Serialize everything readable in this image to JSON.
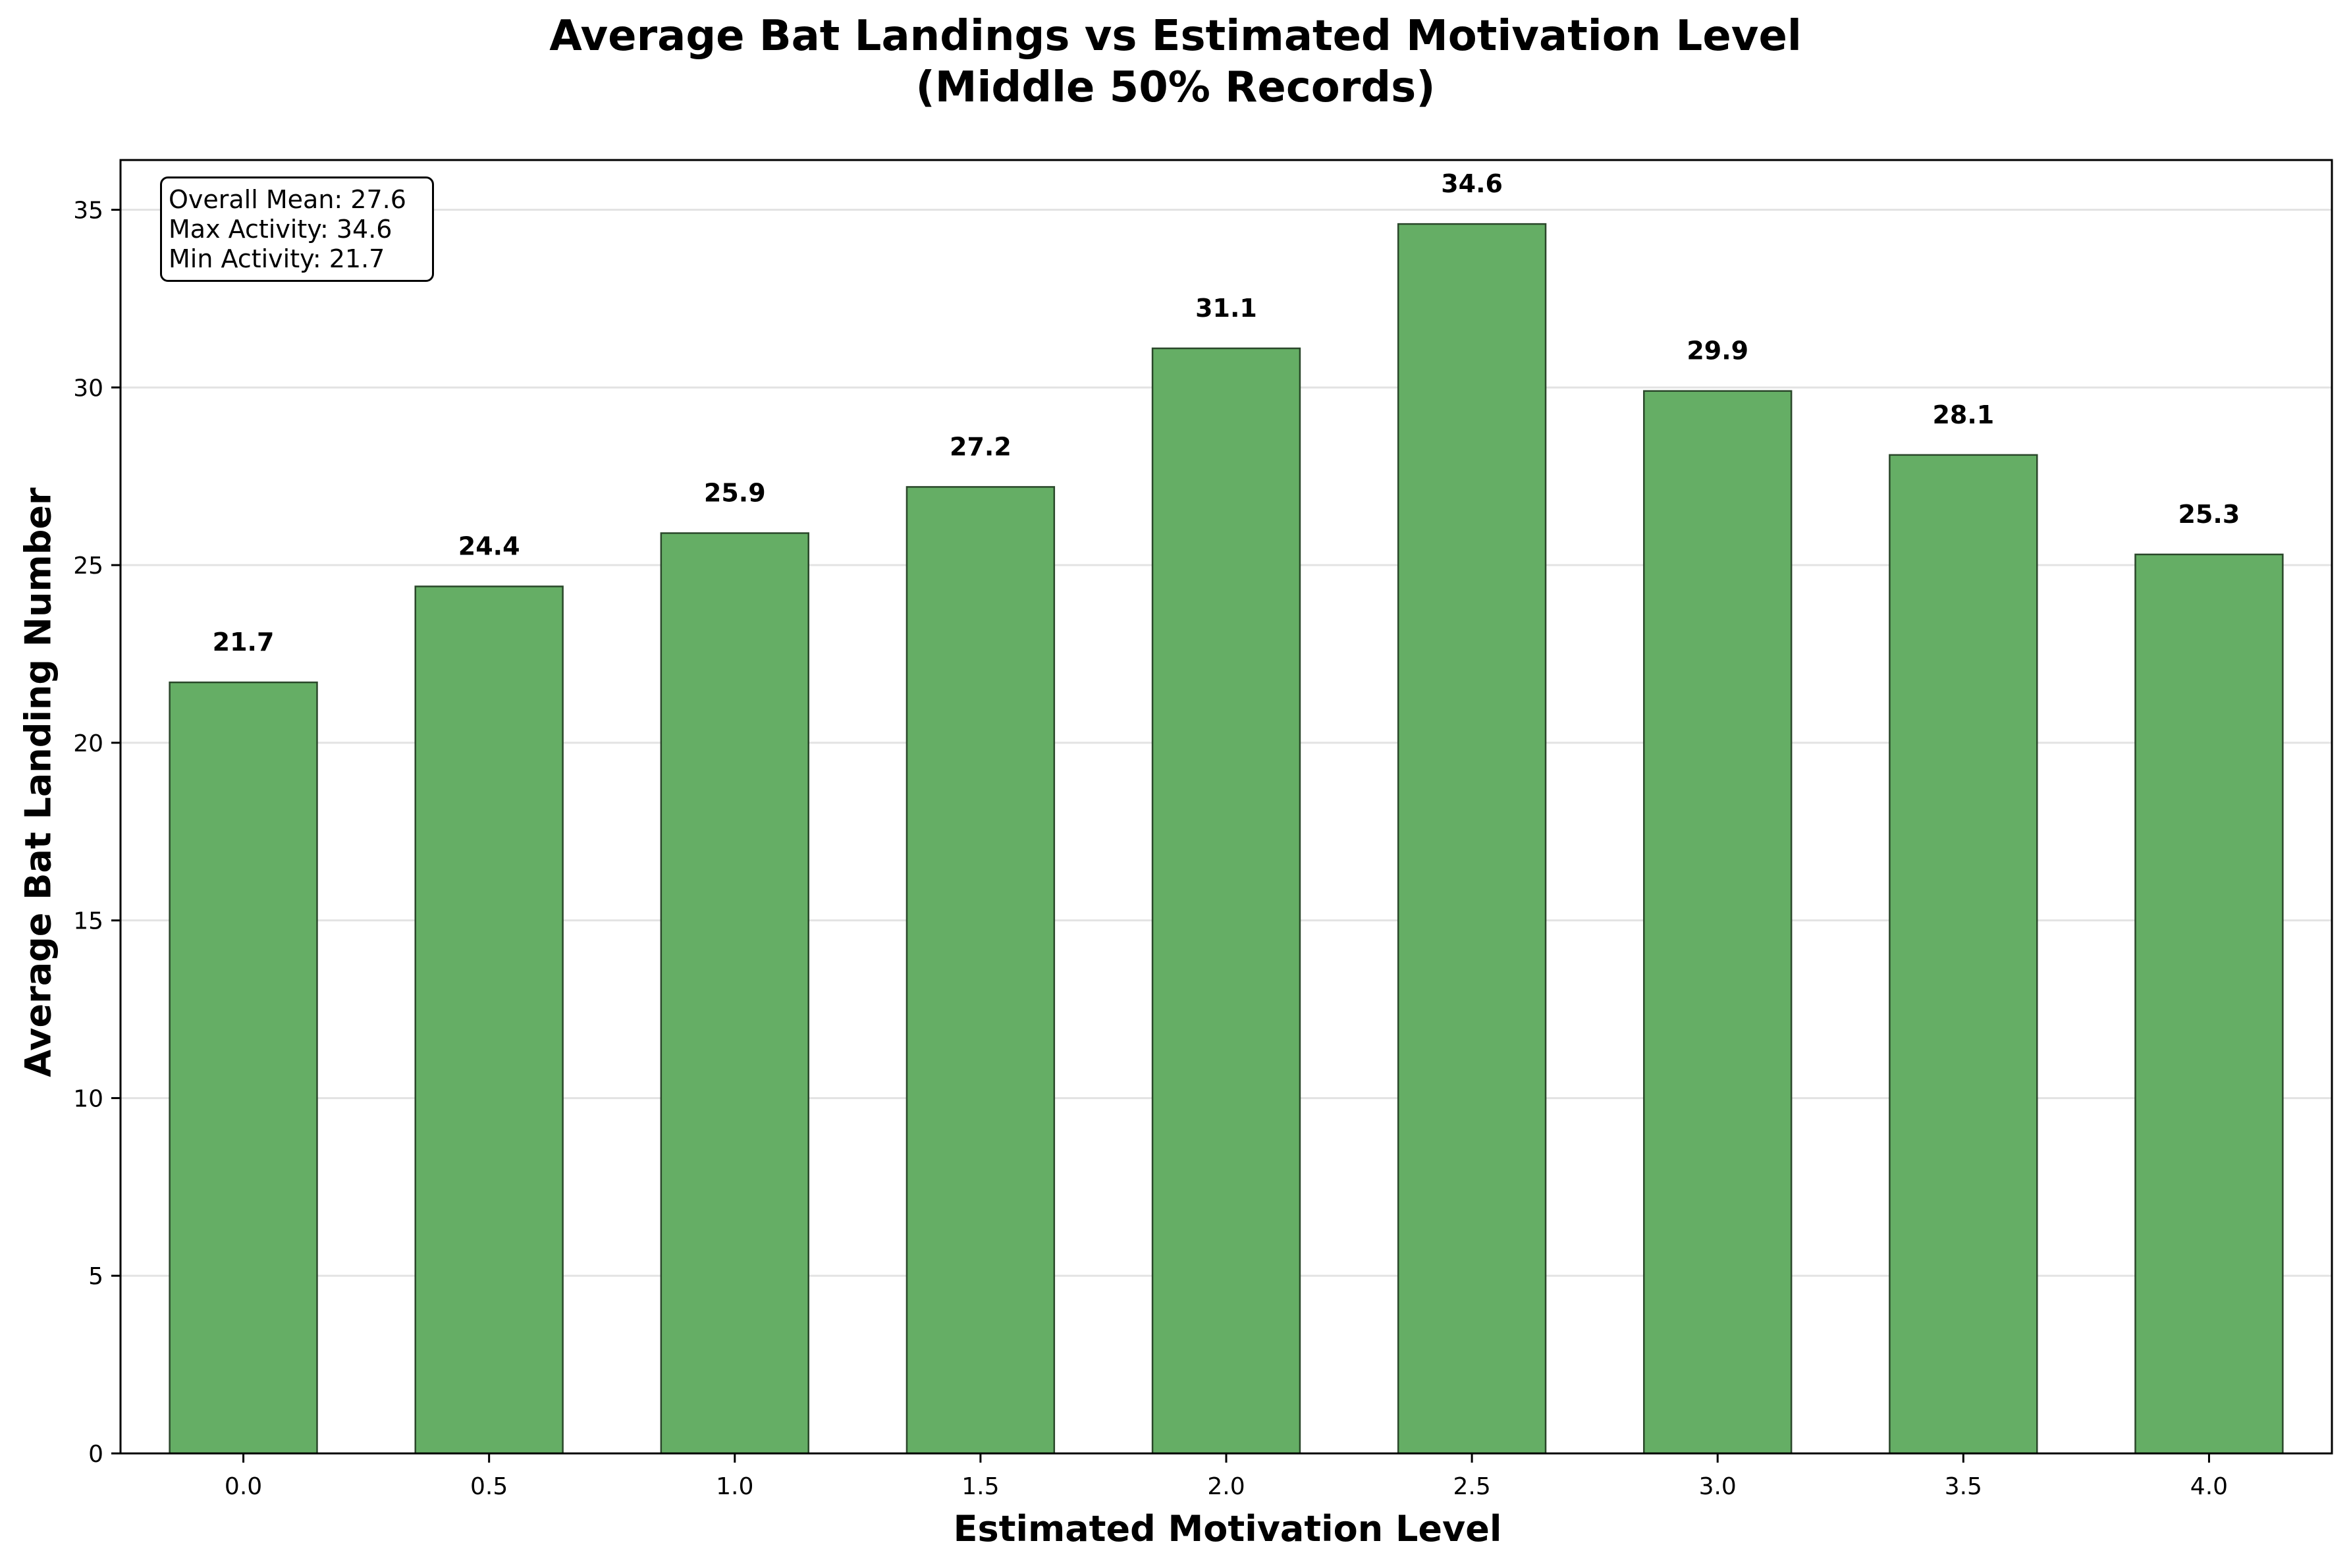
{
  "chart_data": {
    "type": "bar",
    "title_lines": [
      "Average Bat Landings vs Estimated Motivation Level",
      "(Middle 50% Records)"
    ],
    "xlabel": "Estimated Motivation Level",
    "ylabel": "Average Bat Landing Number",
    "categories": [
      "0.0",
      "0.5",
      "1.0",
      "1.5",
      "2.0",
      "2.5",
      "3.0",
      "3.5",
      "4.0"
    ],
    "values": [
      21.7,
      24.4,
      25.9,
      27.2,
      31.1,
      34.6,
      29.9,
      28.1,
      25.3
    ],
    "value_labels": [
      "21.7",
      "24.4",
      "25.9",
      "27.2",
      "31.1",
      "34.6",
      "29.9",
      "28.1",
      "25.3"
    ],
    "yticks": [
      0,
      5,
      10,
      15,
      20,
      25,
      30,
      35
    ],
    "ylim": [
      0,
      36.4
    ],
    "grid": "horizontal",
    "bar_color": "#65ae65",
    "bar_edge_color": "#2a472a",
    "stats_box": {
      "placement": "top-left",
      "lines": [
        "Overall Mean: 27.6",
        "Max Activity: 34.6",
        "Min Activity: 21.7"
      ]
    }
  }
}
